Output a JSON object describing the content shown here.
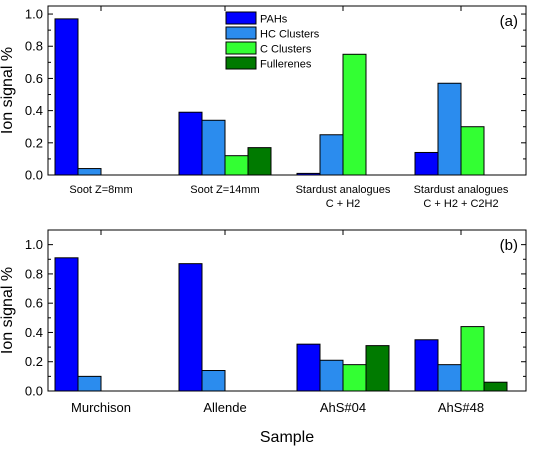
{
  "chart_data": [
    {
      "type": "bar",
      "panel_label": "(a)",
      "ylabel": "Ion signal %",
      "ylim": [
        0,
        1.05
      ],
      "yticks": [
        "0.0",
        "0.2",
        "0.4",
        "0.6",
        "0.8",
        "1.0"
      ],
      "categories": [
        [
          "Soot Z=8mm"
        ],
        [
          "Soot Z=14mm"
        ],
        [
          "Stardust analogues",
          "C + H2"
        ],
        [
          "Stardust analogues",
          "C + H2 + C2H2"
        ]
      ],
      "series": [
        {
          "name": "PAHs",
          "color": "#0000ff",
          "values": [
            0.97,
            0.39,
            0.01,
            0.14
          ]
        },
        {
          "name": "HC Clusters",
          "color": "#2b8cee",
          "values": [
            0.04,
            0.34,
            0.25,
            0.57
          ]
        },
        {
          "name": "C Clusters",
          "color": "#33ff33",
          "values": [
            0.0,
            0.12,
            0.75,
            0.3
          ]
        },
        {
          "name": "Fullerenes",
          "color": "#007a00",
          "values": [
            0.0,
            0.17,
            0.0,
            0.0
          ]
        }
      ],
      "legend": "top-center",
      "grid": false
    },
    {
      "type": "bar",
      "panel_label": "(b)",
      "ylabel": "Ion signal %",
      "xlabel": "Sample",
      "ylim": [
        0,
        1.1
      ],
      "yticks": [
        "0.0",
        "0.2",
        "0.4",
        "0.6",
        "0.8",
        "1.0"
      ],
      "categories": [
        [
          "Murchison"
        ],
        [
          "Allende"
        ],
        [
          "AhS#04"
        ],
        [
          "AhS#48"
        ]
      ],
      "series": [
        {
          "name": "PAHs",
          "color": "#0000ff",
          "values": [
            0.91,
            0.87,
            0.32,
            0.35
          ]
        },
        {
          "name": "HC Clusters",
          "color": "#2b8cee",
          "values": [
            0.1,
            0.14,
            0.21,
            0.18
          ]
        },
        {
          "name": "C Clusters",
          "color": "#33ff33",
          "values": [
            0.0,
            0.0,
            0.18,
            0.44
          ]
        },
        {
          "name": "Fullerenes",
          "color": "#007a00",
          "values": [
            0.0,
            0.0,
            0.31,
            0.06
          ]
        }
      ],
      "legend": "none",
      "grid": false
    }
  ]
}
